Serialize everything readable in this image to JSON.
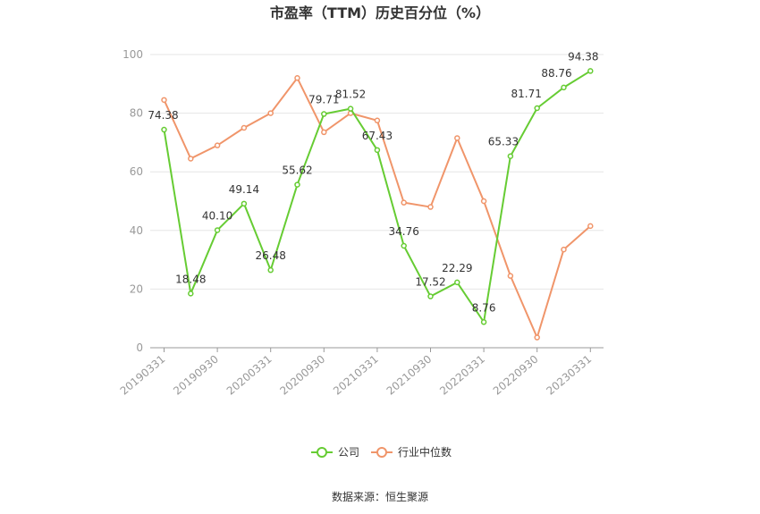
{
  "chart_data": {
    "type": "line",
    "title": "市盈率（TTM）历史百分位（%）",
    "source": "数据来源：恒生聚源",
    "x": [
      "20190331",
      "20190630",
      "20190930",
      "20191231",
      "20200331",
      "20200630",
      "20200930",
      "20201231",
      "20210331",
      "20210630",
      "20210930",
      "20211231",
      "20220331",
      "20220630",
      "20220930",
      "20221231",
      "20230331"
    ],
    "x_tick_labels": [
      "20190331",
      "20190930",
      "20200331",
      "20200930",
      "20210331",
      "20210930",
      "20220331",
      "20220930",
      "20230331"
    ],
    "ylim": [
      0,
      100
    ],
    "yticks": [
      "0",
      "20",
      "40",
      "60",
      "80",
      "100"
    ],
    "grid": true,
    "legend_position": "bottom",
    "series": [
      {
        "name": "公司",
        "color": "#66cc33",
        "values": [
          74.38,
          18.48,
          40.1,
          49.14,
          26.48,
          55.62,
          79.71,
          81.52,
          67.43,
          34.76,
          17.52,
          22.29,
          8.76,
          65.33,
          81.71,
          88.76,
          94.38
        ],
        "labels": [
          "74.38",
          "18.48",
          "40.10",
          "49.14",
          "26.48",
          "55.62",
          "79.71",
          "81.52",
          "67.43",
          "34.76",
          "17.52",
          "22.29",
          "8.76",
          "65.33",
          "81.71",
          "88.76",
          "94.38"
        ]
      },
      {
        "name": "行业中位数",
        "color": "#f0956a",
        "values": [
          84.5,
          64.5,
          69,
          75,
          80,
          92,
          73.5,
          80,
          77.5,
          49.5,
          48,
          71.5,
          50,
          24.5,
          3.5,
          33.5,
          41.5
        ]
      }
    ]
  }
}
